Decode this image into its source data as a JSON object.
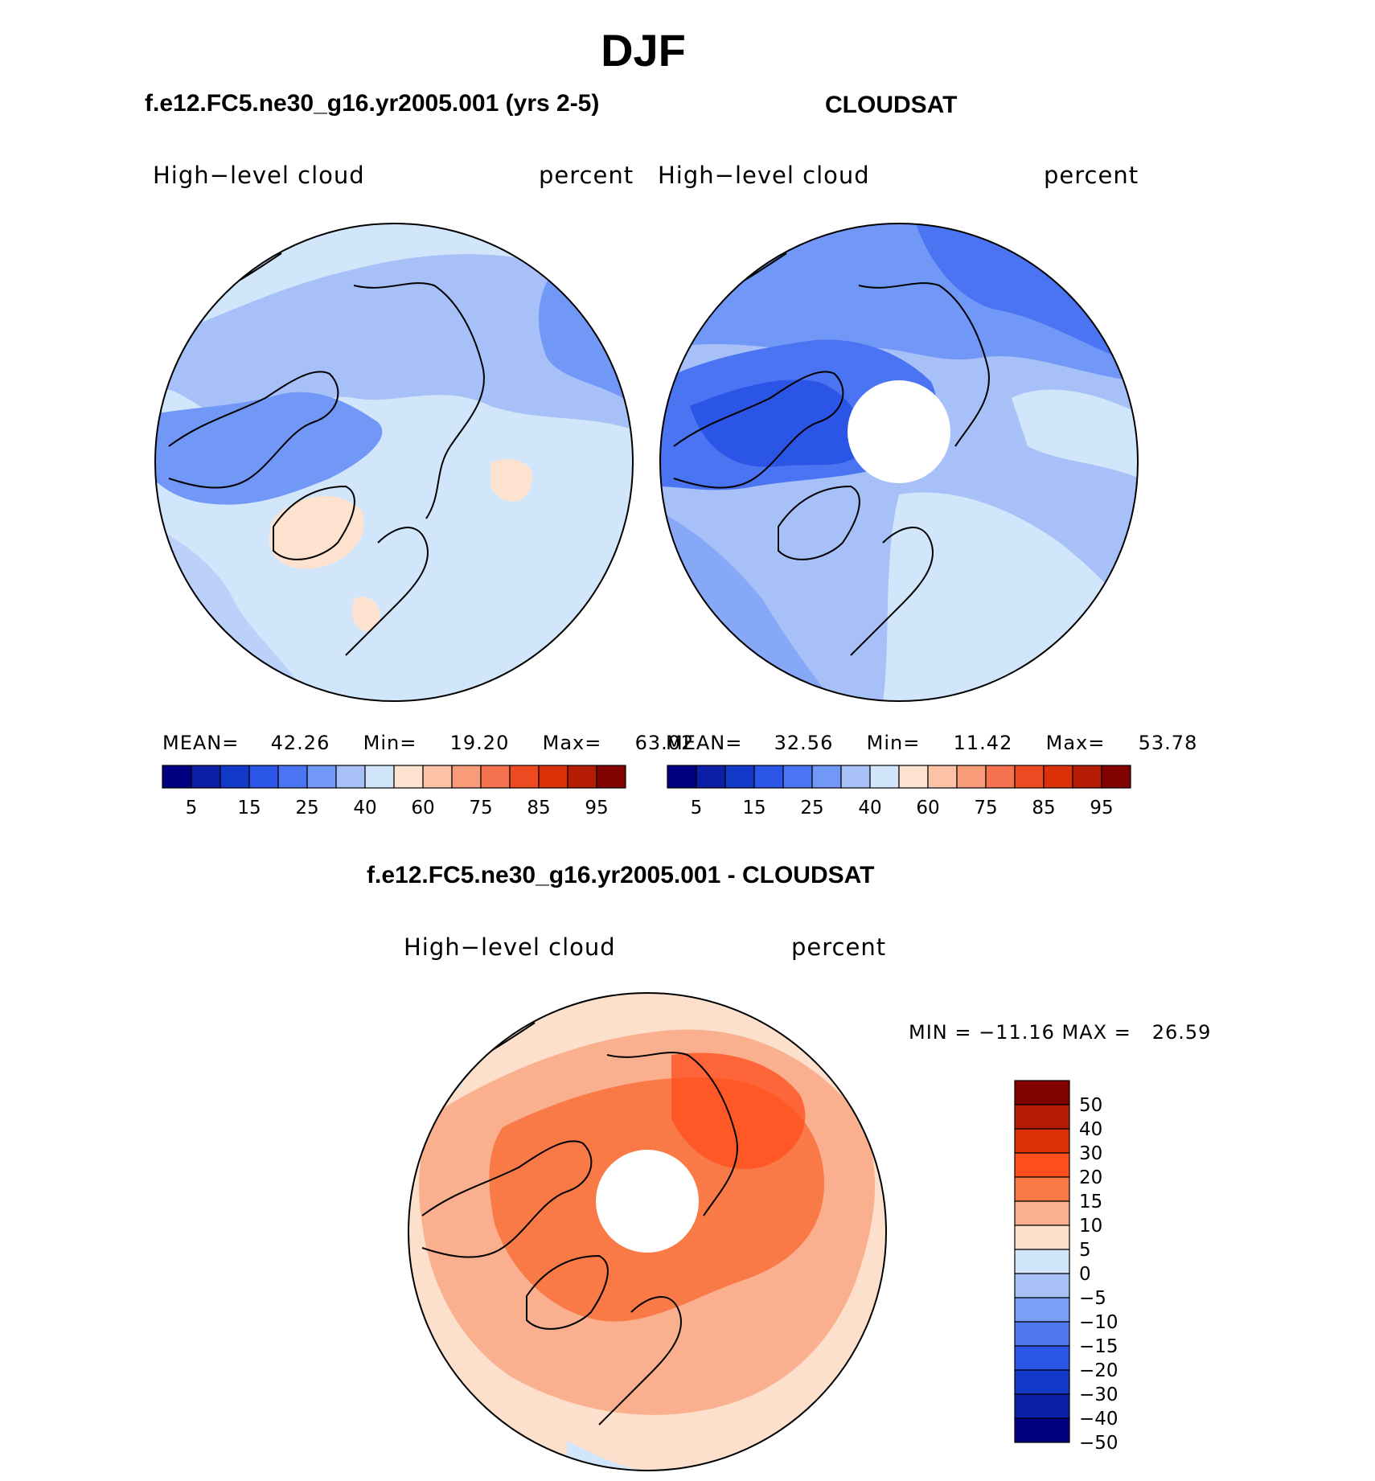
{
  "figure_title": "DJF",
  "panels": [
    {
      "title": "f.e12.FC5.ne30_g16.yr2005.001 (yrs 2-5)",
      "variable": "High−level cloud",
      "units": "percent",
      "stats": {
        "mean_label": "MEAN=",
        "mean": "42.26",
        "min_label": "Min=",
        "min": "19.20",
        "max_label": "Max=",
        "max": "63.02"
      }
    },
    {
      "title": "CLOUDSAT",
      "variable": "High−level cloud",
      "units": "percent",
      "stats": {
        "mean_label": "MEAN=",
        "mean": "32.56",
        "min_label": "Min=",
        "min": "11.42",
        "max_label": "Max=",
        "max": "53.78"
      }
    },
    {
      "title": "f.e12.FC5.ne30_g16.yr2005.001 - CLOUDSAT",
      "variable": "High−level cloud",
      "units": "percent",
      "stats_text": "MIN = −11.16 MAX =   26.59"
    }
  ],
  "chart_data": [
    {
      "type": "heatmap",
      "projection": "north-polar-stereographic",
      "title": "f.e12.FC5.ne30_g16.yr2005.001 (yrs 2-5)",
      "field": "High-level cloud (percent), DJF",
      "mean": 42.26,
      "min": 19.2,
      "max": 63.02,
      "colorbar": {
        "orientation": "horizontal",
        "levels": [
          5,
          10,
          15,
          20,
          25,
          30,
          40,
          50,
          60,
          70,
          75,
          80,
          85,
          90,
          95
        ],
        "tick_labels": [
          "5",
          "15",
          "25",
          "40",
          "60",
          "75",
          "85",
          "95"
        ],
        "colors": [
          "#000080",
          "#0a1ea6",
          "#1238c8",
          "#2a55e6",
          "#4a74f2",
          "#7198f6",
          "#a7c0f8",
          "#d2e6fb",
          "#fde2cf",
          "#fbc2a6",
          "#f79b79",
          "#f4724e",
          "#ee4a22",
          "#dc3108",
          "#b41d03",
          "#820200"
        ]
      }
    },
    {
      "type": "heatmap",
      "projection": "north-polar-stereographic",
      "title": "CLOUDSAT",
      "field": "High-level cloud (percent), DJF",
      "mean": 32.56,
      "min": 11.42,
      "max": 53.78,
      "colorbar": {
        "orientation": "horizontal",
        "levels": [
          5,
          10,
          15,
          20,
          25,
          30,
          40,
          50,
          60,
          70,
          75,
          80,
          85,
          90,
          95
        ],
        "tick_labels": [
          "5",
          "15",
          "25",
          "40",
          "60",
          "75",
          "85",
          "95"
        ],
        "colors": [
          "#000080",
          "#0a1ea6",
          "#1238c8",
          "#2a55e6",
          "#4a74f2",
          "#7198f6",
          "#a7c0f8",
          "#d2e6fb",
          "#fde2cf",
          "#fbc2a6",
          "#f79b79",
          "#f4724e",
          "#ee4a22",
          "#dc3108",
          "#b41d03",
          "#820200"
        ]
      }
    },
    {
      "type": "heatmap",
      "projection": "north-polar-stereographic",
      "title": "f.e12.FC5.ne30_g16.yr2005.001 - CLOUDSAT",
      "field": "High-level cloud difference (percent), DJF",
      "min": -11.16,
      "max": 26.59,
      "colorbar": {
        "orientation": "vertical",
        "levels": [
          50,
          40,
          30,
          20,
          15,
          10,
          5,
          0,
          -5,
          -10,
          -15,
          -20,
          -30,
          -40,
          -50
        ],
        "tick_labels": [
          "50",
          "40",
          "30",
          "20",
          "15",
          "10",
          "5",
          "0",
          "−5",
          "−10",
          "−15",
          "−20",
          "−30",
          "−40",
          "−50"
        ],
        "colors": [
          "#820200",
          "#b41d03",
          "#dc3108",
          "#ff4e1c",
          "#f97a47",
          "#fab08f",
          "#fde0cc",
          "#d2e6fb",
          "#a8c2f7",
          "#7a9ff5",
          "#4f78ef",
          "#2a55e6",
          "#1238c8",
          "#0a1ea6",
          "#000080"
        ]
      }
    }
  ]
}
